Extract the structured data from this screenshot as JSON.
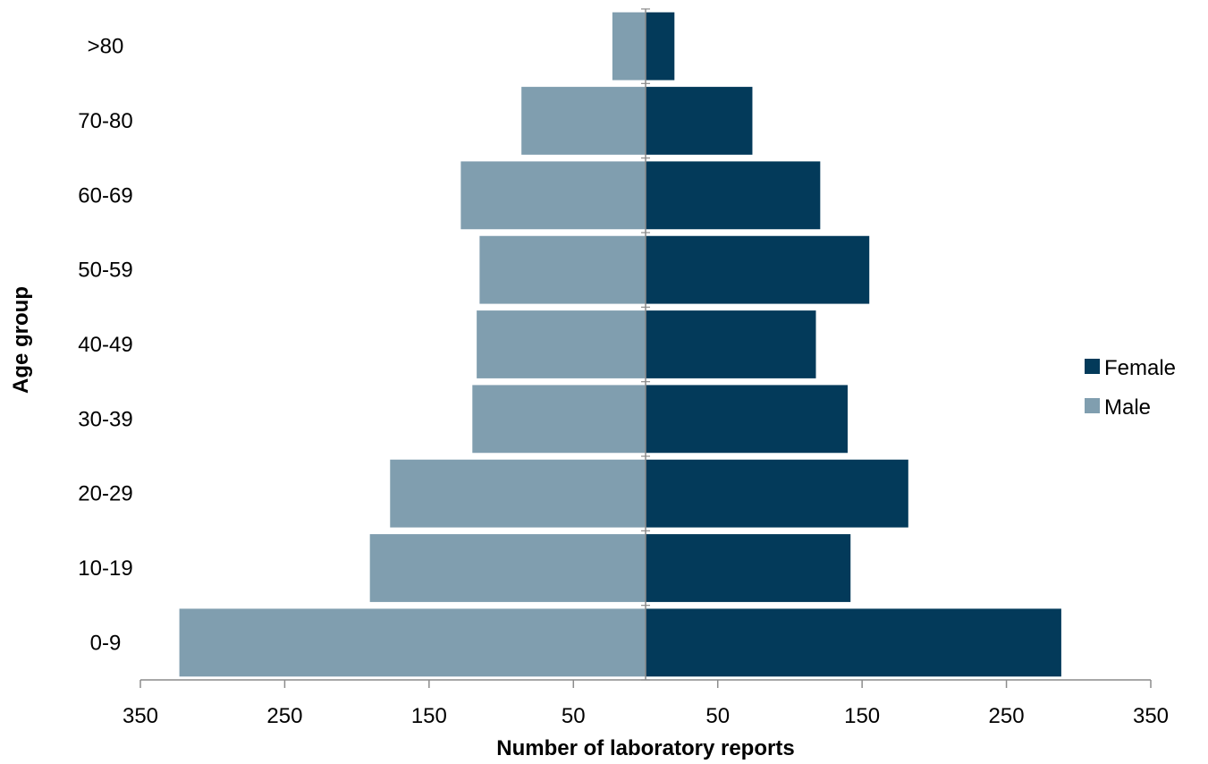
{
  "chart_data": {
    "type": "bar",
    "orientation": "horizontal",
    "layout": "population-pyramid",
    "categories": [
      "0-9",
      "10-19",
      "20-29",
      "30-39",
      "40-49",
      "50-59",
      "60-69",
      "70-80",
      ">80"
    ],
    "series": [
      {
        "name": "Female",
        "side": "right",
        "color": "#033a5a",
        "values": [
          288,
          142,
          182,
          140,
          118,
          155,
          121,
          74,
          20
        ]
      },
      {
        "name": "Male",
        "side": "left",
        "color": "#809eaf",
        "values": [
          323,
          191,
          177,
          120,
          117,
          115,
          128,
          86,
          23
        ]
      }
    ],
    "xlabel": "Number of laboratory reports",
    "ylabel": "Age group",
    "xlim": [
      -350,
      350
    ],
    "x_ticks": [
      -350,
      -250,
      -150,
      -50,
      50,
      150,
      250,
      350
    ],
    "x_tick_labels": [
      "350",
      "250",
      "150",
      "50",
      "50",
      "150",
      "250",
      "350"
    ],
    "grid": false,
    "legend_position": "right"
  }
}
